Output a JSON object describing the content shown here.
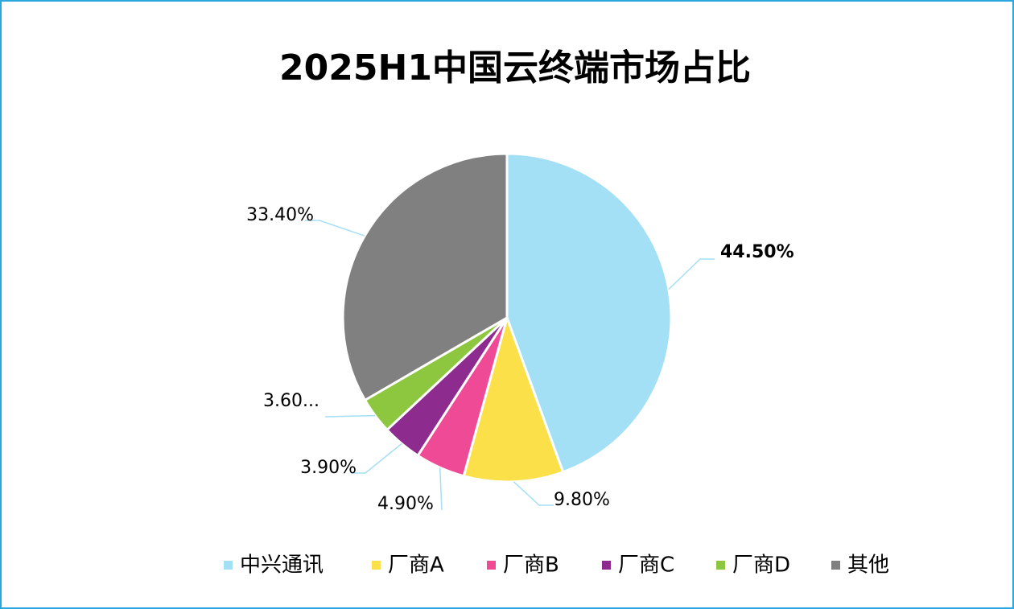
{
  "chart_data": {
    "type": "pie",
    "title": "2025H1中国云终端市场占比",
    "categories": [
      "中兴通讯",
      "厂商A",
      "厂商B",
      "厂商C",
      "厂商D",
      "其他"
    ],
    "values": [
      44.5,
      9.8,
      4.9,
      3.9,
      3.6,
      33.4
    ],
    "value_labels": [
      "44.50%",
      "9.80%",
      "4.90%",
      "3.90%",
      "3.60...",
      "33.40%"
    ],
    "colors": [
      "#a3dff5",
      "#fbe04a",
      "#ef4a96",
      "#8e2b8e",
      "#8dc63f",
      "#808080"
    ],
    "legend": "bottom"
  }
}
